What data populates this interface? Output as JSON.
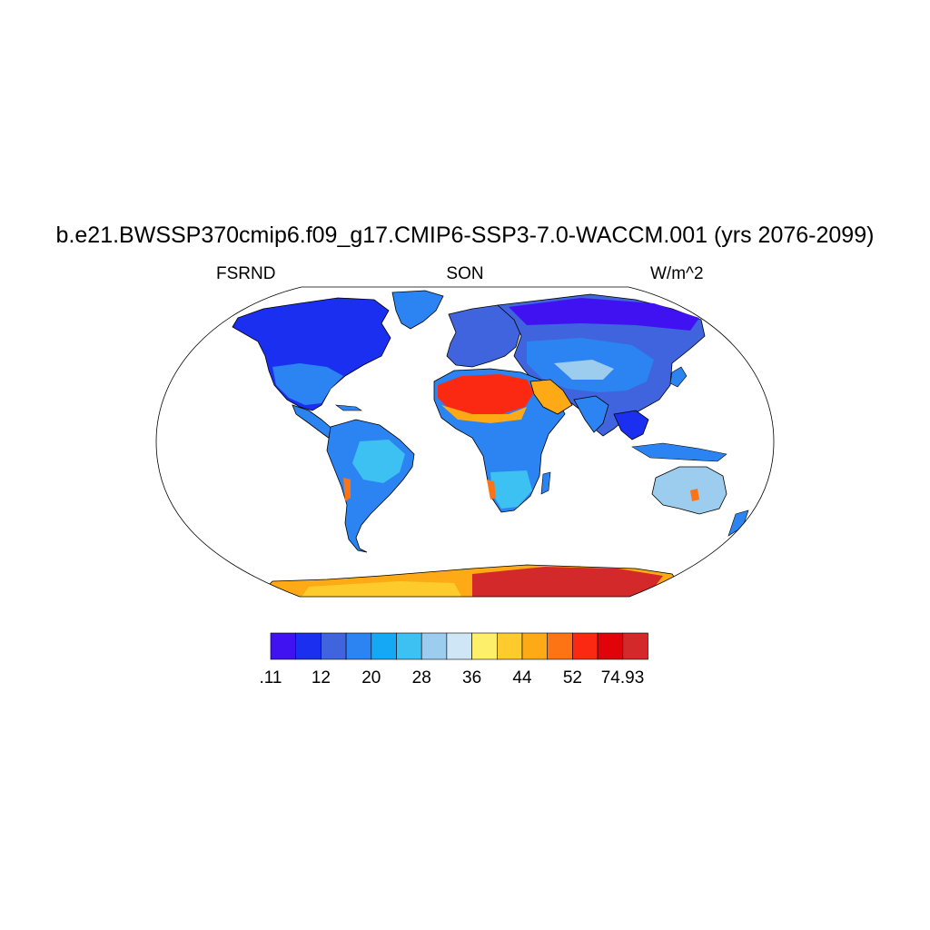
{
  "plot": {
    "title": "b.e21.BWSSP370cmip6.f09_g17.CMIP6-SSP3-7.0-WACCM.001 (yrs 2076-2099)",
    "left_string": "FSRND",
    "center_string": "SON",
    "right_string": "W/m^2",
    "projection": "Robinson",
    "outline": "black"
  },
  "colorbar": {
    "orientation": "horizontal",
    "colors": [
      "#4012f2",
      "#1b2ff0",
      "#3f64dd",
      "#2b84f2",
      "#14a8f5",
      "#3dc1f2",
      "#9ccdee",
      "#cfe6f7",
      "#fdef6a",
      "#fdcc2c",
      "#fdaa16",
      "#fc7413",
      "#fc2912",
      "#e00309",
      "#d3292a"
    ],
    "labels": [
      ".11",
      "",
      "12",
      "",
      "20",
      "",
      "28",
      "",
      "36",
      "",
      "44",
      "",
      "52",
      "74.93"
    ]
  },
  "map_data": {
    "variable": "FSRND",
    "units": "W/m^2",
    "season": "SON",
    "regions": [
      {
        "name": "Greenland",
        "color": "#1b2ff0"
      },
      {
        "name": "North America",
        "color": "#1b2ff0"
      },
      {
        "name": "South America",
        "color": "#3dc1f2"
      },
      {
        "name": "Africa",
        "color": "#2b84f2"
      },
      {
        "name": "Sahara",
        "color": "#fc2912"
      },
      {
        "name": "Arabia",
        "color": "#fdaa16"
      },
      {
        "name": "Europe",
        "color": "#3f64dd"
      },
      {
        "name": "Asia",
        "color": "#2b84f2"
      },
      {
        "name": "Siberia",
        "color": "#4012f2"
      },
      {
        "name": "Australia",
        "color": "#9ccdee"
      },
      {
        "name": "Antarctica",
        "color": "#d3292a"
      }
    ]
  }
}
